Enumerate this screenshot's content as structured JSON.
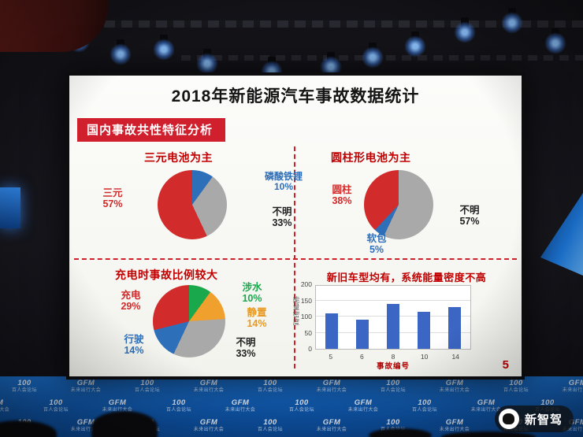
{
  "slide": {
    "title": "2018年新能源汽车事故数据统计",
    "banner": "国内事故共性特征分析",
    "page_number": "5"
  },
  "chart_data": [
    {
      "type": "pie",
      "title": "三元电池为主",
      "slices": [
        {
          "label": "磷酸铁锂",
          "value": 10,
          "pct": "10%",
          "color": "#2e6fba",
          "label_color": "#2e6fba"
        },
        {
          "label": "不明",
          "value": 33,
          "pct": "33%",
          "color": "#a9a9a9",
          "label_color": "#222222"
        },
        {
          "label": "三元",
          "value": 57,
          "pct": "57%",
          "color": "#d22b2b",
          "label_color": "#d22b2b"
        }
      ]
    },
    {
      "type": "pie",
      "title": "圆柱形电池为主",
      "slices": [
        {
          "label": "不明",
          "value": 57,
          "pct": "57%",
          "color": "#a9a9a9",
          "label_color": "#222222"
        },
        {
          "label": "软包",
          "value": 5,
          "pct": "5%",
          "color": "#2e6fba",
          "label_color": "#2e6fba"
        },
        {
          "label": "圆柱",
          "value": 38,
          "pct": "38%",
          "color": "#d22b2b",
          "label_color": "#d22b2b"
        }
      ]
    },
    {
      "type": "pie",
      "title": "充电时事故比例较大",
      "slices": [
        {
          "label": "涉水",
          "value": 10,
          "pct": "10%",
          "color": "#1aa84c",
          "label_color": "#1aa84c"
        },
        {
          "label": "静置",
          "value": 14,
          "pct": "14%",
          "color": "#f0a02c",
          "label_color": "#e89a20"
        },
        {
          "label": "不明",
          "value": 33,
          "pct": "33%",
          "color": "#a9a9a9",
          "label_color": "#222222"
        },
        {
          "label": "行驶",
          "value": 14,
          "pct": "14%",
          "color": "#2e6fba",
          "label_color": "#2e6fba"
        },
        {
          "label": "充电",
          "value": 29,
          "pct": "29%",
          "color": "#d22b2b",
          "label_color": "#d22b2b"
        }
      ]
    },
    {
      "type": "bar",
      "title": "新旧车型均有，系统能量密度不高",
      "categories": [
        "5",
        "6",
        "8",
        "10",
        "14"
      ],
      "values": [
        110,
        90,
        140,
        115,
        130
      ],
      "xlabel": "事故编号",
      "ylabel": "能量密度",
      "ylim": [
        0,
        200
      ],
      "yticks": [
        0,
        50,
        100,
        150,
        200
      ],
      "bar_color": "#3b66c4"
    }
  ],
  "stage": {
    "watermark": "新智驾",
    "logos": [
      {
        "main": "100",
        "sub": "百人会论坛"
      },
      {
        "main": "GFM",
        "sub": "未来出行大会"
      }
    ]
  }
}
